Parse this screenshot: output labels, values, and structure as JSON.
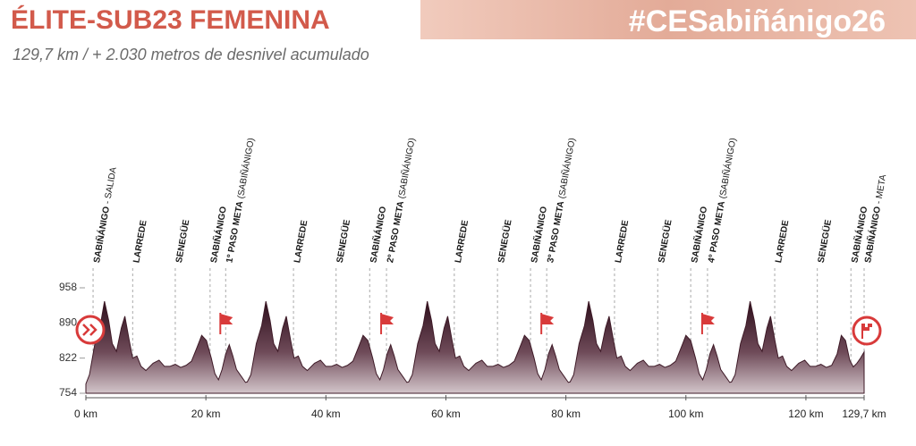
{
  "chart_data": {
    "type": "area",
    "title": "ÉLITE-SUB23 FEMENINA",
    "hashtag": "#CESabiñánigo26",
    "subtitle": "129,7 km / + 2.030 metros de desnivel acumulado",
    "x": [
      0,
      0.6,
      1.5,
      2.4,
      3.1,
      3.8,
      4.4,
      5.1,
      5.9,
      6.5,
      7.2,
      7.8,
      8.5,
      9.2,
      10.0,
      11.2,
      12.2,
      13.1,
      14.0,
      14.9,
      15.8,
      16.7,
      17.6,
      18.5,
      19.3,
      20.1,
      20.9,
      21.5,
      22.1,
      22.7,
      23.3,
      23.9,
      24.5,
      25.1,
      26.0,
      26.6,
      26.9,
      27.5,
      28.4,
      29.3,
      30.0,
      30.7,
      31.3,
      32.0,
      32.8,
      33.4,
      34.1,
      34.7,
      35.4,
      36.1,
      36.9,
      38.1,
      39.1,
      40.0,
      40.9,
      41.8,
      42.7,
      43.6,
      44.5,
      45.4,
      46.2,
      47.0,
      47.8,
      48.4,
      49.0,
      49.6,
      50.2,
      50.8,
      51.4,
      52.0,
      52.9,
      53.5,
      53.8,
      54.4,
      55.3,
      56.2,
      56.9,
      57.6,
      58.2,
      58.9,
      59.7,
      60.3,
      61.0,
      61.6,
      62.3,
      63.0,
      63.8,
      65.0,
      66.0,
      66.9,
      67.8,
      68.7,
      69.6,
      70.5,
      71.4,
      72.3,
      73.1,
      73.9,
      74.7,
      75.3,
      75.9,
      76.5,
      77.1,
      77.7,
      78.3,
      78.9,
      79.8,
      80.4,
      80.7,
      81.3,
      82.2,
      83.1,
      83.8,
      84.5,
      85.1,
      85.8,
      86.6,
      87.2,
      87.9,
      88.5,
      89.2,
      89.9,
      90.7,
      91.9,
      92.9,
      93.8,
      94.7,
      95.6,
      96.5,
      97.4,
      98.3,
      99.2,
      100.0,
      100.8,
      101.6,
      102.2,
      102.8,
      103.4,
      104.0,
      104.6,
      105.2,
      105.8,
      106.7,
      107.3,
      107.6,
      108.2,
      109.1,
      110.0,
      110.7,
      111.4,
      112.0,
      112.7,
      113.5,
      114.1,
      114.8,
      115.4,
      116.1,
      116.8,
      117.6,
      118.8,
      119.8,
      120.7,
      121.6,
      122.5,
      123.4,
      124.3,
      125.2,
      125.9,
      126.6,
      127.3,
      127.9,
      128.5,
      129.1,
      129.7
    ],
    "values": [
      772,
      790,
      850,
      885,
      932,
      895,
      850,
      835,
      880,
      903,
      858,
      822,
      826,
      806,
      798,
      812,
      818,
      806,
      806,
      810,
      804,
      808,
      816,
      842,
      866,
      856,
      822,
      792,
      780,
      800,
      830,
      848,
      826,
      800,
      785,
      775,
      776,
      790,
      850,
      885,
      932,
      895,
      850,
      835,
      880,
      903,
      858,
      822,
      826,
      806,
      798,
      812,
      818,
      806,
      806,
      810,
      804,
      808,
      816,
      842,
      866,
      856,
      822,
      792,
      780,
      800,
      830,
      848,
      826,
      800,
      785,
      775,
      776,
      790,
      850,
      885,
      932,
      895,
      850,
      835,
      880,
      903,
      858,
      822,
      826,
      806,
      798,
      812,
      818,
      806,
      806,
      810,
      804,
      808,
      816,
      842,
      866,
      856,
      822,
      792,
      780,
      800,
      830,
      848,
      826,
      800,
      785,
      775,
      776,
      790,
      850,
      885,
      932,
      895,
      850,
      835,
      880,
      903,
      858,
      822,
      826,
      806,
      798,
      812,
      818,
      806,
      806,
      810,
      804,
      808,
      816,
      842,
      866,
      856,
      822,
      792,
      780,
      800,
      830,
      848,
      826,
      800,
      785,
      775,
      776,
      790,
      850,
      885,
      932,
      895,
      850,
      835,
      880,
      903,
      858,
      822,
      826,
      806,
      798,
      812,
      818,
      806,
      806,
      810,
      804,
      808,
      830,
      866,
      856,
      818,
      805,
      812,
      822,
      834
    ],
    "color": "#3e1a27",
    "xlim": [
      0,
      129.7
    ],
    "xticks": [
      {
        "value": 0,
        "label": "0 km"
      },
      {
        "value": 20,
        "label": "20 km"
      },
      {
        "value": 40,
        "label": "40 km"
      },
      {
        "value": 60,
        "label": "60 km"
      },
      {
        "value": 80,
        "label": "80 km"
      },
      {
        "value": 100,
        "label": "100 km"
      },
      {
        "value": 120,
        "label": "120 km"
      },
      {
        "value": 129.7,
        "label": "129,7 km"
      }
    ],
    "ylim": [
      754,
      958
    ],
    "yticks": [
      754,
      822,
      890,
      958
    ],
    "passes": [
      {
        "label": "SABIÑÁNIGO",
        "detail": "- SALIDA",
        "km": 1.2
      },
      {
        "label": "LARREDE",
        "km": 7.8
      },
      {
        "label": "SENEGÜE",
        "km": 14.9
      },
      {
        "label": "SABIÑÁNIGO",
        "km": 20.7
      },
      {
        "label": "1º PASO META",
        "detail": "(SABIÑÁNIGO)",
        "km": 23.3
      },
      {
        "label": "LARREDE",
        "km": 34.6
      },
      {
        "label": "SENEGÜE",
        "km": 41.7
      },
      {
        "label": "SABIÑÁNIGO",
        "km": 47.3
      },
      {
        "label": "2º PASO META",
        "detail": "(SABIÑÁNIGO)",
        "km": 50.1
      },
      {
        "label": "LARREDE",
        "km": 61.4
      },
      {
        "label": "SENEGÜE",
        "km": 68.6
      },
      {
        "label": "SABIÑÁNIGO",
        "km": 74.1
      },
      {
        "label": "3º PASO META",
        "detail": "(SABIÑÁNIGO)",
        "km": 76.8
      },
      {
        "label": "LARREDE",
        "km": 88.1
      },
      {
        "label": "SENEGÜE",
        "km": 95.3
      },
      {
        "label": "SABIÑÁNIGO",
        "km": 100.8
      },
      {
        "label": "4º PASO META",
        "detail": "(SABIÑÁNIGO)",
        "km": 103.6
      },
      {
        "label": "LARREDE",
        "km": 114.8
      },
      {
        "label": "SENEGÜE",
        "km": 121.9
      },
      {
        "label": "SABIÑÁNIGO",
        "km": 127.5
      },
      {
        "label": "SABIÑÁNIGO",
        "detail": "- META",
        "km": 129.7
      }
    ]
  }
}
